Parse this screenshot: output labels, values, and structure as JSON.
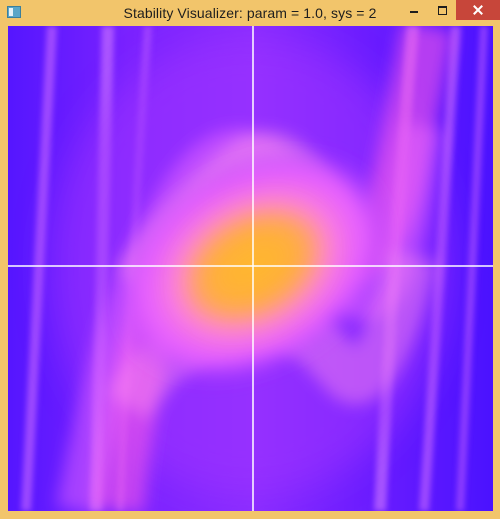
{
  "window": {
    "title": "Stability Visualizer: param = 1.0, sys = 2",
    "icon": "app-icon",
    "frame_color": "#f2c56b",
    "controls": {
      "minimize_icon": "minimize-icon",
      "maximize_icon": "maximize-icon",
      "close_icon": "close-icon",
      "close_color": "#c7463a"
    }
  },
  "canvas": {
    "palette": {
      "background": "#4a12ff",
      "mid": "#b040ff",
      "glow": "#ff7df5",
      "core": "#ffb437",
      "axis": "#ffffff"
    }
  }
}
